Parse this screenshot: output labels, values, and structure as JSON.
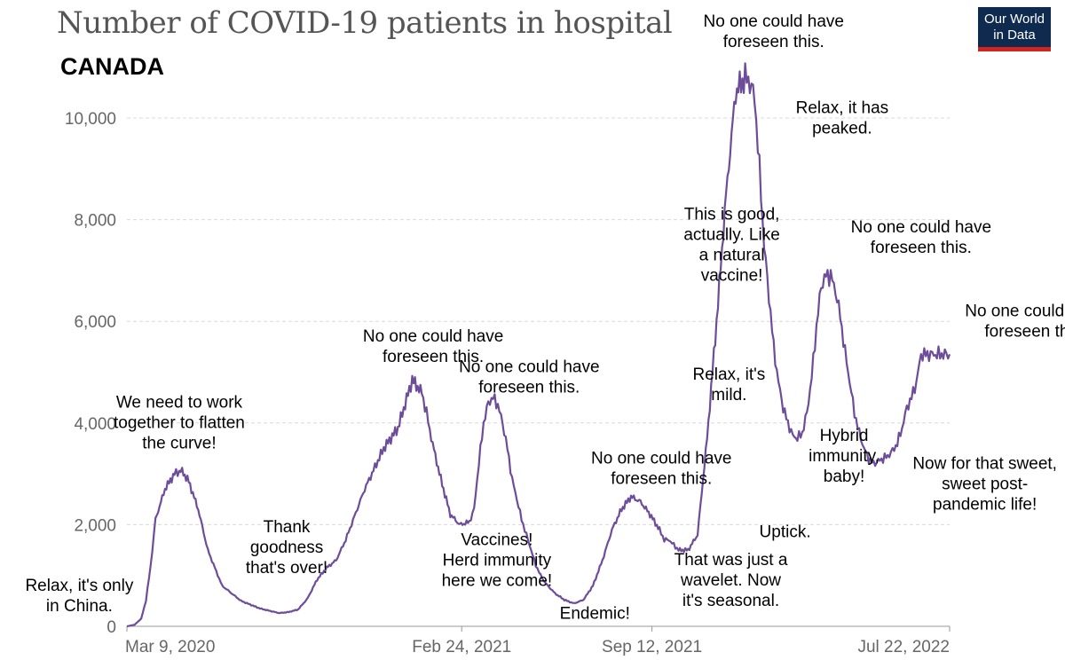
{
  "title": "Number of COVID-19 patients in hospital",
  "subtitle": "CANADA",
  "logo": {
    "line1": "Our World",
    "line2": "in Data",
    "bg_color": "#0f2a4f",
    "accent_color": "#ce261e"
  },
  "chart_data": {
    "type": "line",
    "title": "Number of COVID-19 patients in hospital",
    "subtitle": "CANADA",
    "xlabel": "",
    "ylabel": "",
    "ylim": [
      0,
      10800
    ],
    "yticks": [
      0,
      2000,
      4000,
      6000,
      8000,
      10000
    ],
    "ytick_labels": [
      "0",
      "2,000",
      "4,000",
      "6,000",
      "8,000",
      "10,000"
    ],
    "xrange_days": [
      0,
      865
    ],
    "xticks_days": [
      0,
      352,
      552,
      865
    ],
    "xtick_labels": [
      "Mar 9, 2020",
      "Feb 24, 2021",
      "Sep 12, 2021",
      "Jul 22, 2022"
    ],
    "grid": true,
    "line_color": "#6d4c9a",
    "series": [
      {
        "name": "Canada",
        "x_days": [
          0,
          8,
          15,
          20,
          25,
          30,
          40,
          50,
          55,
          58,
          65,
          75,
          85,
          100,
          120,
          140,
          160,
          170,
          180,
          190,
          200,
          210,
          220,
          230,
          250,
          270,
          285,
          300,
          310,
          315,
          320,
          330,
          340,
          350,
          360,
          365,
          370,
          375,
          380,
          385,
          390,
          395,
          400,
          405,
          410,
          415,
          420,
          425,
          430,
          435,
          440,
          450,
          460,
          470,
          480,
          490,
          500,
          510,
          520,
          530,
          540,
          550,
          560,
          565,
          570,
          575,
          580,
          590,
          600,
          610,
          620,
          630,
          640,
          650,
          655,
          660,
          665,
          670,
          675,
          680,
          685,
          690,
          695,
          700,
          705,
          710,
          715,
          720,
          725,
          730,
          735,
          740,
          745,
          750,
          755,
          760,
          765,
          770,
          775,
          780,
          785,
          790,
          795,
          800,
          805,
          810,
          815,
          820,
          825,
          830,
          835,
          840,
          845,
          850,
          855,
          860,
          865
        ],
        "values": [
          0,
          30,
          150,
          500,
          1200,
          2100,
          2700,
          3000,
          3050,
          3050,
          2850,
          2300,
          1500,
          800,
          500,
          350,
          260,
          280,
          330,
          550,
          920,
          1150,
          1300,
          1700,
          2700,
          3500,
          3900,
          4850,
          4600,
          4200,
          3700,
          2900,
          2200,
          2000,
          2050,
          2300,
          3200,
          4000,
          4400,
          4500,
          4350,
          4000,
          3500,
          2900,
          2500,
          2100,
          1800,
          1500,
          1200,
          1000,
          850,
          650,
          520,
          450,
          520,
          800,
          1300,
          1900,
          2300,
          2550,
          2450,
          2200,
          1900,
          1700,
          1700,
          1600,
          1500,
          1500,
          1800,
          3700,
          6000,
          8500,
          10500,
          10800,
          10700,
          10400,
          9000,
          7500,
          6500,
          5500,
          4800,
          4300,
          4000,
          3750,
          3700,
          3800,
          4200,
          4900,
          5900,
          6700,
          6900,
          6900,
          6600,
          6100,
          5400,
          4800,
          4200,
          3800,
          3500,
          3300,
          3200,
          3250,
          3300,
          3350,
          3450,
          3600,
          3900,
          4300,
          4500,
          4800,
          5350,
          5350,
          5350,
          5350,
          5350,
          5350,
          5350
        ]
      }
    ],
    "annotations": [
      {
        "lines": [
          "Relax, it's only",
          "in China."
        ],
        "x_day": -50,
        "y_value": 700
      },
      {
        "lines": [
          "We need to work",
          "together to flatten",
          "the curve!"
        ],
        "x_day": 55,
        "y_value": 4300
      },
      {
        "lines": [
          "Thank",
          "goodness",
          "that's over!"
        ],
        "x_day": 168,
        "y_value": 1850
      },
      {
        "lines": [
          "No one could have",
          "foreseen this."
        ],
        "x_day": 322,
        "y_value": 5600
      },
      {
        "lines": [
          "No one could have",
          "foreseen this."
        ],
        "x_day": 423,
        "y_value": 5000
      },
      {
        "lines": [
          "Vaccines!",
          "Herd immunity",
          "here we come!"
        ],
        "x_day": 389,
        "y_value": 1600
      },
      {
        "lines": [
          "Endemic!"
        ],
        "x_day": 492,
        "y_value": 150
      },
      {
        "lines": [
          "No one could have",
          "foreseen this."
        ],
        "x_day": 562,
        "y_value": 3200
      },
      {
        "lines": [
          "That was just a",
          "wavelet. Now",
          "it's seasonal."
        ],
        "x_day": 635,
        "y_value": 1200
      },
      {
        "lines": [
          "Uptick."
        ],
        "x_day": 692,
        "y_value": 1750
      },
      {
        "lines": [
          "Relax, it's",
          "mild."
        ],
        "x_day": 633,
        "y_value": 4850
      },
      {
        "lines": [
          "This is good,",
          "actually. Like",
          "a natural",
          "vaccine!"
        ],
        "x_day": 636,
        "y_value": 8000
      },
      {
        "lines": [
          "No one could have",
          "foreseen this."
        ],
        "x_day": 680,
        "y_value": 11800
      },
      {
        "lines": [
          "Relax, it has",
          "peaked."
        ],
        "x_day": 752,
        "y_value": 10100
      },
      {
        "lines": [
          "Hybrid",
          "immunity,",
          "baby!"
        ],
        "x_day": 754,
        "y_value": 3650
      },
      {
        "lines": [
          "No one could have",
          "foreseen this."
        ],
        "x_day": 835,
        "y_value": 7750
      },
      {
        "lines": [
          "Now for that sweet,",
          "sweet post-",
          "pandemic life!"
        ],
        "x_day": 902,
        "y_value": 3100
      },
      {
        "lines": [
          "No one could have",
          "foreseen this."
        ],
        "x_day": 955,
        "y_value": 6100
      }
    ]
  }
}
